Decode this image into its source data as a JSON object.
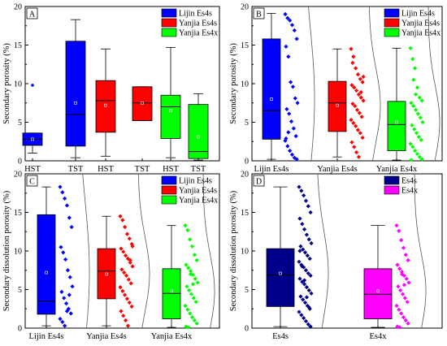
{
  "chart_data": [
    {
      "panel": "A",
      "type": "box",
      "ylabel": "Secondary porosity (%)",
      "ylim": [
        0,
        20
      ],
      "yticks": [
        0,
        5,
        10,
        15,
        20
      ],
      "categories": [
        "HST",
        "TST",
        "HST",
        "TST",
        "HST",
        "TST"
      ],
      "legend": [
        {
          "name": "Lijin Es4s",
          "color": "#0000ff"
        },
        {
          "name": "Yanjia Es4s",
          "color": "#ff0000"
        },
        {
          "name": "Yanjia Es4x",
          "color": "#00ff00"
        }
      ],
      "legend_position": "top-right",
      "boxes": [
        {
          "cat": 0,
          "color": "#0000ff",
          "whisker_low": 1.0,
          "q1": 2.0,
          "median": 2.8,
          "q3": 3.6,
          "whisker_high": 3.6,
          "mean": 2.8,
          "outliers": [
            9.8
          ]
        },
        {
          "cat": 1,
          "color": "#0000ff",
          "whisker_low": 0.4,
          "q1": 1.9,
          "median": 6.0,
          "q3": 15.5,
          "whisker_high": 18.3,
          "mean": 7.5,
          "outliers": []
        },
        {
          "cat": 2,
          "color": "#ff0000",
          "whisker_low": 0.6,
          "q1": 3.7,
          "median": 7.8,
          "q3": 10.4,
          "whisker_high": 14.5,
          "mean": 7.2,
          "outliers": []
        },
        {
          "cat": 3,
          "color": "#ff0000",
          "whisker_low": 5.2,
          "q1": 5.2,
          "median": 7.5,
          "q3": 9.6,
          "whisker_high": 9.6,
          "mean": 7.5,
          "outliers": []
        },
        {
          "cat": 4,
          "color": "#00ff00",
          "whisker_low": 0.4,
          "q1": 2.9,
          "median": 7.0,
          "q3": 8.5,
          "whisker_high": 14.7,
          "mean": 6.5,
          "outliers": []
        },
        {
          "cat": 5,
          "color": "#00ff00",
          "whisker_low": 0.1,
          "q1": 0.3,
          "median": 1.2,
          "q3": 7.3,
          "whisker_high": 8.7,
          "mean": 3.1,
          "outliers": []
        }
      ]
    },
    {
      "panel": "B",
      "type": "box",
      "ylabel": "Secondary porosity (%)",
      "ylim": [
        0,
        20
      ],
      "yticks": [
        0,
        5,
        10,
        15,
        20
      ],
      "categories": [
        "Lijin Es4s",
        "Yanjia Es4s",
        "Yanjia Es4x"
      ],
      "legend": [
        {
          "name": "Lijin Es4s",
          "color": "#0000ff"
        },
        {
          "name": "Yanjia Es4s",
          "color": "#ff0000"
        },
        {
          "name": "Yanjia Es4x",
          "color": "#00ff00"
        }
      ],
      "legend_position": "top-right",
      "boxes": [
        {
          "cat": 0,
          "color": "#0000ff",
          "whisker_low": 0.2,
          "q1": 2.8,
          "median": 6.5,
          "q3": 15.8,
          "whisker_high": 19.1,
          "mean": 8.0,
          "points": [
            19.0,
            18.5,
            18.2,
            17.6,
            16.9,
            15.8,
            14.8,
            13.5,
            10.2,
            9.6,
            8.1,
            7.5,
            6.7,
            6.1,
            5.1,
            4.2,
            3.2,
            2.6,
            1.9,
            1.3,
            0.8,
            0.4,
            0.2,
            2.9,
            3.7
          ]
        },
        {
          "cat": 1,
          "color": "#ff0000",
          "whisker_low": 0.5,
          "q1": 3.8,
          "median": 7.5,
          "q3": 10.3,
          "whisker_high": 14.5,
          "mean": 7.2,
          "points": [
            14.5,
            13.5,
            12.0,
            11.2,
            10.6,
            10.2,
            9.8,
            9.5,
            9.1,
            8.6,
            8.2,
            7.8,
            7.4,
            7.1,
            6.6,
            6.2,
            5.7,
            5.3,
            4.9,
            4.5,
            4.0,
            3.6,
            3.0,
            2.4,
            1.8,
            1.1,
            0.5,
            8.9,
            10.9,
            12.7
          ]
        },
        {
          "cat": 2,
          "color": "#00ff00",
          "whisker_low": 0.1,
          "q1": 1.3,
          "median": 4.7,
          "q3": 7.7,
          "whisker_high": 14.6,
          "mean": 5.0,
          "points": [
            14.6,
            13.2,
            12.0,
            9.5,
            8.2,
            7.8,
            7.5,
            7.1,
            6.6,
            6.1,
            5.6,
            5.0,
            4.6,
            4.1,
            3.6,
            3.1,
            2.7,
            2.2,
            1.8,
            1.3,
            0.9,
            0.5,
            0.2,
            0.1,
            10.5,
            8.6
          ]
        }
      ]
    },
    {
      "panel": "C",
      "type": "box",
      "ylabel": "Secondary dissolution porosity (%)",
      "ylim": [
        0,
        20
      ],
      "yticks": [
        0,
        5,
        10,
        15,
        20
      ],
      "categories": [
        "Lijin Es4s",
        "Yanjia Es4s",
        "Yanjia Es4x"
      ],
      "legend": [
        {
          "name": "Lijin Es4s",
          "color": "#0000ff"
        },
        {
          "name": "Yanjia Es4s",
          "color": "#ff0000"
        },
        {
          "name": "Yanjia Es4x",
          "color": "#00ff00"
        }
      ],
      "legend_position": "top-right",
      "boxes": [
        {
          "cat": 0,
          "color": "#0000ff",
          "whisker_low": 0.3,
          "q1": 1.8,
          "median": 3.5,
          "q3": 14.7,
          "whisker_high": 18.3,
          "mean": 7.2,
          "points": [
            18.3,
            17.6,
            16.8,
            15.9,
            14.3,
            13.1,
            10.5,
            9.8,
            8.9,
            7.5,
            6.6,
            5.4,
            4.7,
            3.9,
            3.2,
            2.5,
            1.9,
            1.2,
            0.8,
            0.3,
            2.2,
            4.3
          ]
        },
        {
          "cat": 1,
          "color": "#ff0000",
          "whisker_low": 0.3,
          "q1": 3.8,
          "median": 7.4,
          "q3": 10.3,
          "whisker_high": 14.5,
          "mean": 7.0,
          "points": [
            14.5,
            14.0,
            13.1,
            12.2,
            11.6,
            10.9,
            10.3,
            9.9,
            9.4,
            9.0,
            8.5,
            8.0,
            7.6,
            7.2,
            6.8,
            6.3,
            5.8,
            5.3,
            4.8,
            4.3,
            3.8,
            3.3,
            2.8,
            2.2,
            1.6,
            1.0,
            0.3,
            8.8,
            10.6
          ]
        },
        {
          "cat": 2,
          "color": "#00ff00",
          "whisker_low": 0.1,
          "q1": 1.2,
          "median": 4.5,
          "q3": 7.7,
          "whisker_high": 13.3,
          "mean": 4.8,
          "points": [
            13.3,
            12.7,
            11.5,
            10.6,
            9.5,
            8.8,
            8.2,
            7.8,
            7.4,
            6.9,
            6.4,
            5.9,
            5.4,
            4.9,
            4.4,
            3.9,
            3.4,
            2.9,
            2.4,
            1.9,
            1.4,
            1.0,
            0.6,
            0.2,
            0.1,
            7.0,
            5.7
          ]
        }
      ]
    },
    {
      "panel": "D",
      "type": "box",
      "ylabel": "Secondary dissolution porosity (%)",
      "ylim": [
        0,
        20
      ],
      "yticks": [
        0,
        5,
        10,
        15,
        20
      ],
      "categories": [
        "Es4s",
        "Es4x"
      ],
      "legend": [
        {
          "name": "Es4s",
          "color": "#00008b"
        },
        {
          "name": "Es4x",
          "color": "#ff00ff"
        }
      ],
      "legend_position": "top-right",
      "boxes": [
        {
          "cat": 0,
          "color": "#00008b",
          "whisker_low": 0.2,
          "q1": 2.8,
          "median": 6.9,
          "q3": 10.3,
          "whisker_high": 18.3,
          "mean": 7.1,
          "points": [
            18.3,
            17.8,
            17.2,
            16.5,
            15.8,
            15.0,
            14.2,
            13.5,
            12.8,
            12.1,
            11.5,
            11.0,
            10.6,
            10.2,
            9.8,
            9.4,
            9.0,
            8.6,
            8.2,
            7.9,
            7.5,
            7.1,
            6.8,
            6.4,
            6.0,
            5.7,
            5.3,
            4.9,
            4.5,
            4.1,
            3.7,
            3.3,
            2.9,
            2.5,
            2.1,
            1.7,
            1.3,
            0.9,
            0.5,
            0.2,
            10.0,
            8.0,
            6.2,
            4.0,
            2.7
          ]
        },
        {
          "cat": 1,
          "color": "#ff00ff",
          "whisker_low": 0.1,
          "q1": 1.2,
          "median": 4.4,
          "q3": 7.7,
          "whisker_high": 13.3,
          "mean": 4.8,
          "points": [
            13.3,
            12.6,
            11.4,
            10.4,
            9.5,
            8.8,
            8.2,
            7.7,
            7.3,
            6.8,
            6.4,
            5.9,
            5.4,
            4.9,
            4.4,
            3.9,
            3.4,
            2.9,
            2.4,
            1.9,
            1.4,
            1.0,
            0.6,
            0.2,
            0.1,
            7.0,
            5.6
          ]
        }
      ]
    }
  ]
}
